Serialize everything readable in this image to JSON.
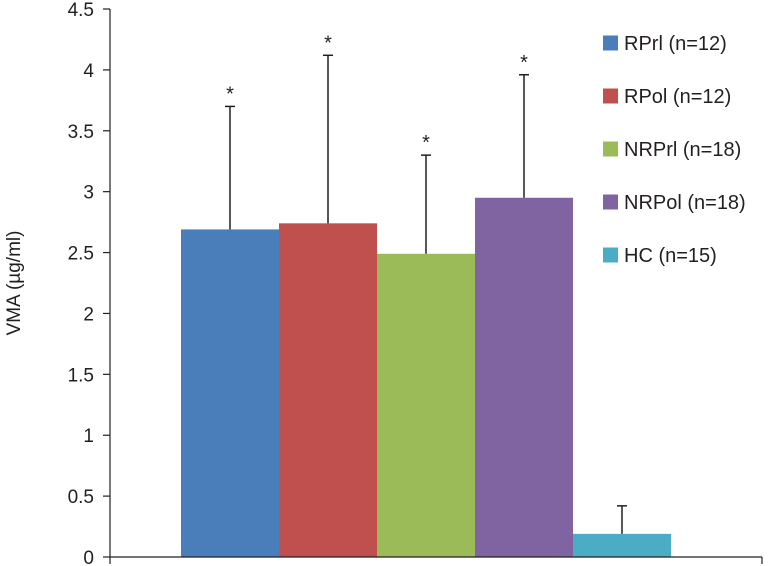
{
  "chart_data": {
    "type": "bar",
    "title": "",
    "xlabel": "",
    "ylabel": "VMA (µg/ml)",
    "ylim": [
      0,
      4.5
    ],
    "yticks": [
      "0",
      "0.5",
      "1",
      "1.5",
      "2",
      "2.5",
      "3",
      "3.5",
      "4",
      "4.5"
    ],
    "grid": false,
    "legend_position": "right",
    "series": [
      {
        "name": "RPrl (n=12)",
        "value": 2.69,
        "error": 1.01,
        "marker": "*",
        "color": "#4a7ebb"
      },
      {
        "name": "RPol (n=12)",
        "value": 2.74,
        "error": 1.38,
        "marker": "*",
        "color": "#c0504d"
      },
      {
        "name": "NRPrl (n=18)",
        "value": 2.49,
        "error": 0.81,
        "marker": "*",
        "color": "#9bbb59"
      },
      {
        "name": "NRPol (n=18)",
        "value": 2.95,
        "error": 1.01,
        "marker": "*",
        "color": "#8064a2"
      },
      {
        "name": "HC (n=15)",
        "value": 0.19,
        "error": 0.23,
        "marker": "",
        "color": "#4bacc6"
      }
    ]
  }
}
